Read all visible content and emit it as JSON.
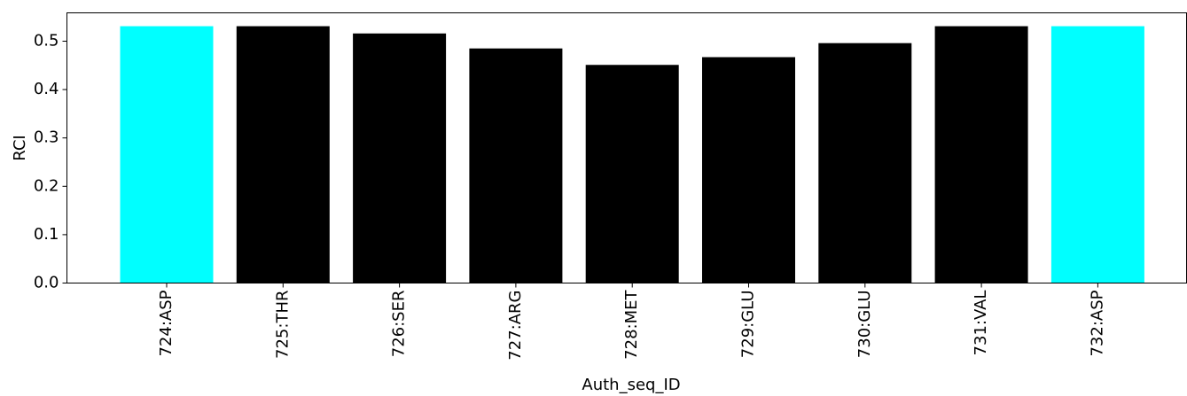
{
  "chart_data": {
    "type": "bar",
    "x_label": "Auth_seq_ID",
    "y_label": "RCI",
    "categories": [
      "724:ASP",
      "725:THR",
      "726:SER",
      "727:ARG",
      "728:MET",
      "729:GLU",
      "730:GLU",
      "731:VAL",
      "732:ASP"
    ],
    "values": [
      0.531,
      0.531,
      0.516,
      0.485,
      0.451,
      0.467,
      0.496,
      0.531,
      0.531
    ],
    "colors": [
      "#00ffff",
      "#000000",
      "#000000",
      "#000000",
      "#000000",
      "#000000",
      "#000000",
      "#000000",
      "#00ffff"
    ],
    "ylim": [
      0,
      0.5586
    ],
    "yticks": [
      {
        "value": 0,
        "label": "0.0"
      },
      0.1,
      0.2,
      0.3,
      0.4,
      0.5
    ]
  }
}
